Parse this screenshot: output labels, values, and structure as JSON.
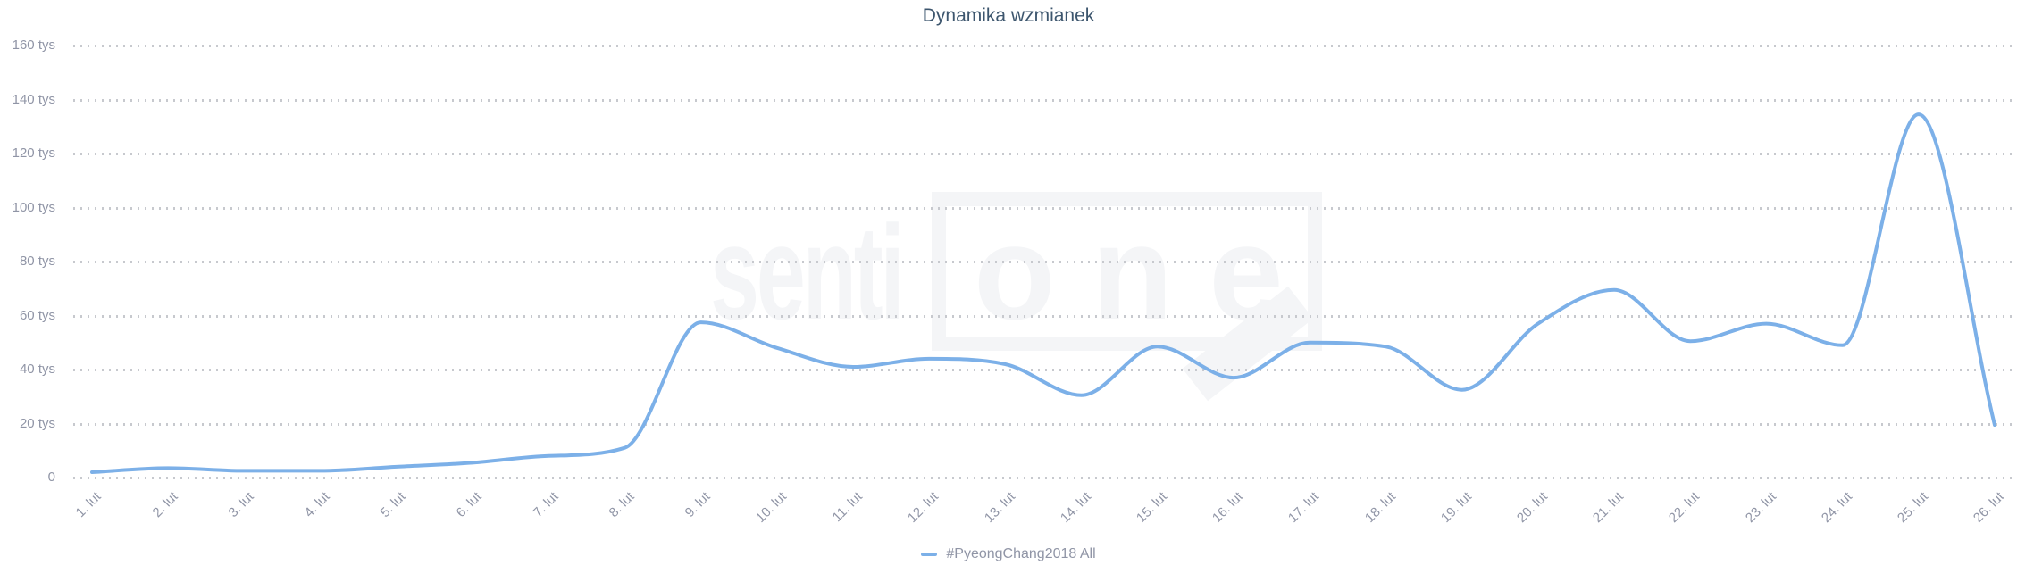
{
  "page": {
    "background": "#ffffff"
  },
  "chart": {
    "title": "Dynamika wzmianek",
    "watermark": {
      "text_plain": "senti",
      "text_boxed": "one"
    },
    "legend": {
      "items": [
        {
          "label": "#PyeongChang2018 All",
          "color": "#7cb0e8"
        }
      ]
    }
  },
  "colors": {
    "line": "#7cb0e8",
    "title_text": "#3d566e",
    "axis_text": "#9095a6",
    "grid_dot": "#c7c9ce",
    "watermark": "#f4f5f7",
    "background": "#ffffff"
  },
  "chart_data": {
    "type": "line",
    "title": "Dynamika wzmianek",
    "x_categories": [
      "1. lut",
      "2. lut",
      "3. lut",
      "4. lut",
      "5. lut",
      "6. lut",
      "7. lut",
      "8. lut",
      "9. lut",
      "10. lut",
      "11. lut",
      "12. lut",
      "13. lut",
      "14. lut",
      "15. lut",
      "16. lut",
      "17. lut",
      "18. lut",
      "19. lut",
      "20. lut",
      "21. lut",
      "22. lut",
      "23. lut",
      "24. lut",
      "25. lut",
      "26. lut"
    ],
    "series": [
      {
        "name": "#PyeongChang2018 All",
        "unit": "tys",
        "values_tys": [
          2,
          3.5,
          2.5,
          2.5,
          4,
          5.5,
          8,
          11,
          57.5,
          48,
          41,
          44,
          42,
          30.5,
          48.5,
          37,
          50,
          48.5,
          32.5,
          57,
          69.5,
          50.5,
          57,
          49,
          134.5,
          19.5
        ]
      }
    ],
    "y_ticks_tys": [
      0,
      20,
      40,
      60,
      80,
      100,
      120,
      140,
      160
    ],
    "y_tick_labels": [
      "0",
      "20 tys",
      "40 tys",
      "60 tys",
      "80 tys",
      "100 tys",
      "120 tys",
      "140 tys",
      "160 tys"
    ],
    "ylim_tys": [
      0,
      160
    ],
    "grid": "horizontal-dotted",
    "legend_position": "bottom-center",
    "line_style": "smooth-spline"
  }
}
